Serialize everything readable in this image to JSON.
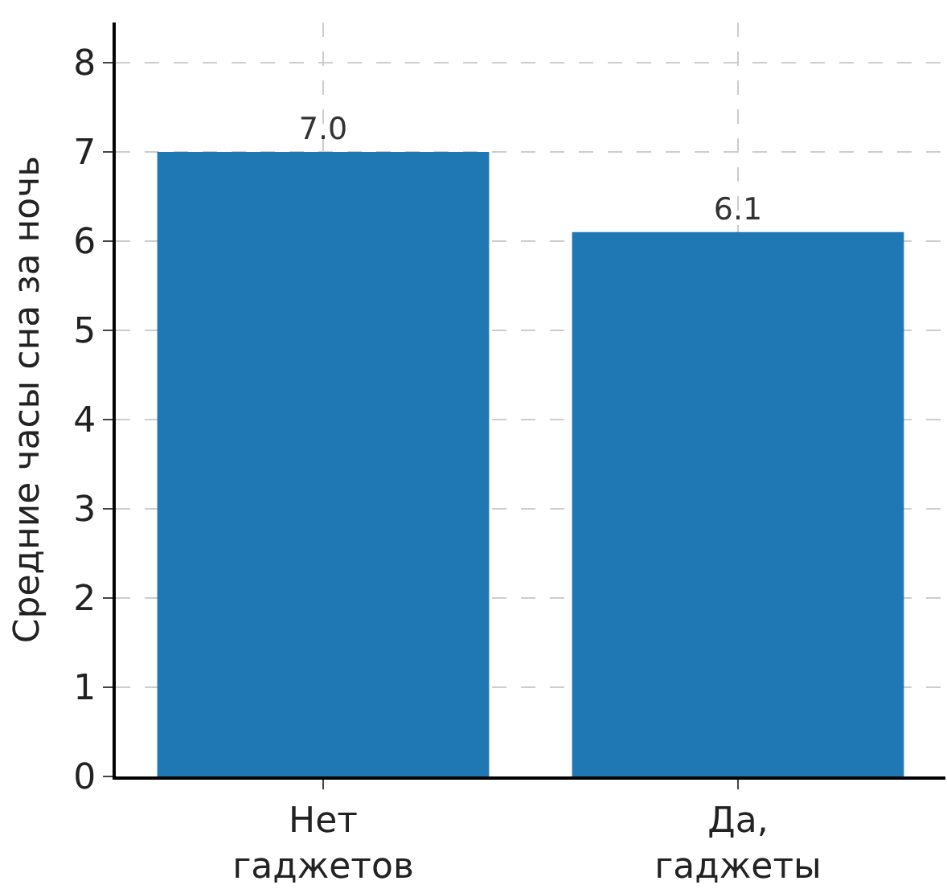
{
  "chart_data": {
    "type": "bar",
    "ylabel": "Средние часы сна за ночь",
    "categories": [
      "Нет\nгаджетов",
      "Да,\nгаджеты"
    ],
    "values": [
      7.0,
      6.1
    ],
    "value_labels": [
      "7.0",
      "6.1"
    ],
    "color": "#1f77b4",
    "ylim": [
      0,
      8.45
    ],
    "yticks": [
      0,
      1,
      2,
      3,
      4,
      5,
      6,
      7,
      8
    ],
    "grid": true
  }
}
